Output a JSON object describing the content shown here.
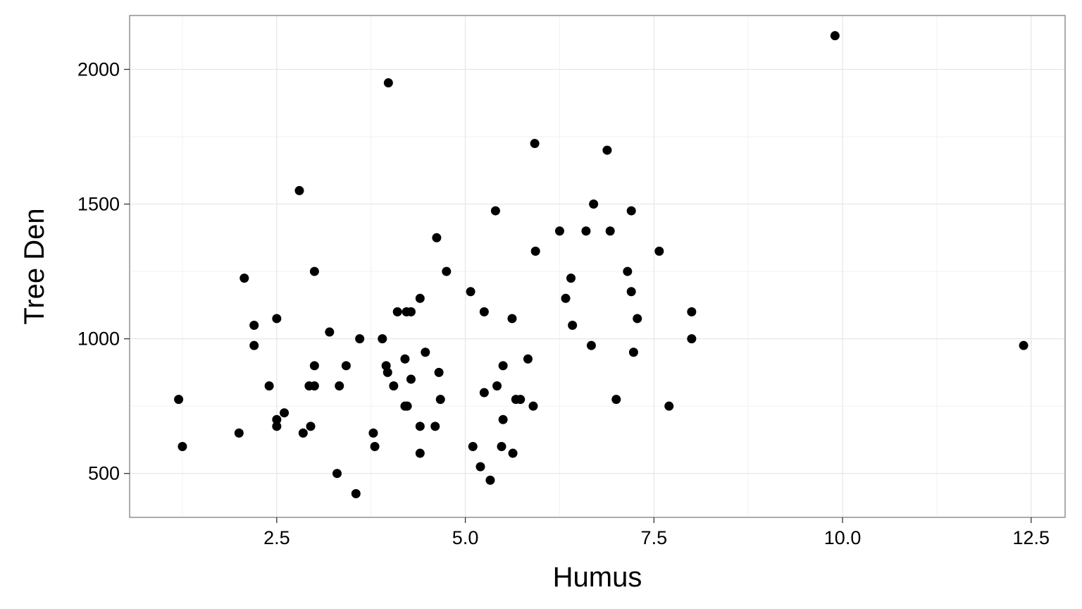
{
  "chart_data": {
    "type": "scatter",
    "title": "",
    "xlabel": "Humus",
    "ylabel": "Tree Den",
    "xlim": [
      0.55,
      12.95
    ],
    "ylim": [
      337,
      2200
    ],
    "x_ticks": [
      2.5,
      5.0,
      7.5,
      10.0,
      12.5
    ],
    "x_tick_labels": [
      "2.5",
      "5.0",
      "7.5",
      "10.0",
      "12.5"
    ],
    "y_ticks": [
      500,
      1000,
      1500,
      2000
    ],
    "y_tick_labels": [
      "500",
      "1000",
      "1500",
      "2000"
    ],
    "grid": true,
    "legend": "none",
    "point_color": "#000000",
    "points": [
      {
        "x": 1.2,
        "y": 775
      },
      {
        "x": 1.25,
        "y": 600
      },
      {
        "x": 2.0,
        "y": 650
      },
      {
        "x": 2.07,
        "y": 1225
      },
      {
        "x": 2.2,
        "y": 1050
      },
      {
        "x": 2.2,
        "y": 975
      },
      {
        "x": 2.4,
        "y": 825
      },
      {
        "x": 2.5,
        "y": 1075
      },
      {
        "x": 2.5,
        "y": 700
      },
      {
        "x": 2.5,
        "y": 675
      },
      {
        "x": 2.6,
        "y": 725
      },
      {
        "x": 2.8,
        "y": 1550
      },
      {
        "x": 2.85,
        "y": 650
      },
      {
        "x": 2.93,
        "y": 825
      },
      {
        "x": 2.95,
        "y": 675
      },
      {
        "x": 3.0,
        "y": 1250
      },
      {
        "x": 3.0,
        "y": 900
      },
      {
        "x": 3.0,
        "y": 825
      },
      {
        "x": 3.2,
        "y": 1025
      },
      {
        "x": 3.3,
        "y": 500
      },
      {
        "x": 3.33,
        "y": 825
      },
      {
        "x": 3.42,
        "y": 900
      },
      {
        "x": 3.55,
        "y": 425
      },
      {
        "x": 3.6,
        "y": 1000
      },
      {
        "x": 3.78,
        "y": 650
      },
      {
        "x": 3.8,
        "y": 600
      },
      {
        "x": 3.9,
        "y": 1000
      },
      {
        "x": 3.95,
        "y": 900
      },
      {
        "x": 3.97,
        "y": 875
      },
      {
        "x": 3.98,
        "y": 1950
      },
      {
        "x": 4.05,
        "y": 825
      },
      {
        "x": 4.1,
        "y": 1100
      },
      {
        "x": 4.2,
        "y": 925
      },
      {
        "x": 4.2,
        "y": 750
      },
      {
        "x": 4.22,
        "y": 1100
      },
      {
        "x": 4.23,
        "y": 750
      },
      {
        "x": 4.28,
        "y": 1100
      },
      {
        "x": 4.28,
        "y": 850
      },
      {
        "x": 4.4,
        "y": 1150
      },
      {
        "x": 4.4,
        "y": 675
      },
      {
        "x": 4.4,
        "y": 575
      },
      {
        "x": 4.47,
        "y": 950
      },
      {
        "x": 4.6,
        "y": 675
      },
      {
        "x": 4.62,
        "y": 1375
      },
      {
        "x": 4.65,
        "y": 875
      },
      {
        "x": 4.67,
        "y": 775
      },
      {
        "x": 4.75,
        "y": 1250
      },
      {
        "x": 5.07,
        "y": 1175
      },
      {
        "x": 5.1,
        "y": 600
      },
      {
        "x": 5.2,
        "y": 525
      },
      {
        "x": 5.25,
        "y": 1100
      },
      {
        "x": 5.25,
        "y": 800
      },
      {
        "x": 5.33,
        "y": 475
      },
      {
        "x": 5.4,
        "y": 1475
      },
      {
        "x": 5.42,
        "y": 825
      },
      {
        "x": 5.48,
        "y": 600
      },
      {
        "x": 5.5,
        "y": 900
      },
      {
        "x": 5.5,
        "y": 700
      },
      {
        "x": 5.62,
        "y": 1075
      },
      {
        "x": 5.63,
        "y": 575
      },
      {
        "x": 5.67,
        "y": 775
      },
      {
        "x": 5.73,
        "y": 775
      },
      {
        "x": 5.83,
        "y": 925
      },
      {
        "x": 5.9,
        "y": 750
      },
      {
        "x": 5.92,
        "y": 1725
      },
      {
        "x": 5.93,
        "y": 1325
      },
      {
        "x": 6.25,
        "y": 1400
      },
      {
        "x": 6.33,
        "y": 1150
      },
      {
        "x": 6.4,
        "y": 1225
      },
      {
        "x": 6.42,
        "y": 1050
      },
      {
        "x": 6.6,
        "y": 1400
      },
      {
        "x": 6.67,
        "y": 975
      },
      {
        "x": 6.7,
        "y": 1500
      },
      {
        "x": 6.88,
        "y": 1700
      },
      {
        "x": 6.92,
        "y": 1400
      },
      {
        "x": 7.0,
        "y": 775
      },
      {
        "x": 7.15,
        "y": 1250
      },
      {
        "x": 7.2,
        "y": 1475
      },
      {
        "x": 7.2,
        "y": 1175
      },
      {
        "x": 7.23,
        "y": 950
      },
      {
        "x": 7.28,
        "y": 1075
      },
      {
        "x": 7.57,
        "y": 1325
      },
      {
        "x": 7.7,
        "y": 750
      },
      {
        "x": 8.0,
        "y": 1100
      },
      {
        "x": 8.0,
        "y": 1000
      },
      {
        "x": 9.9,
        "y": 2125
      },
      {
        "x": 12.4,
        "y": 975
      }
    ]
  }
}
